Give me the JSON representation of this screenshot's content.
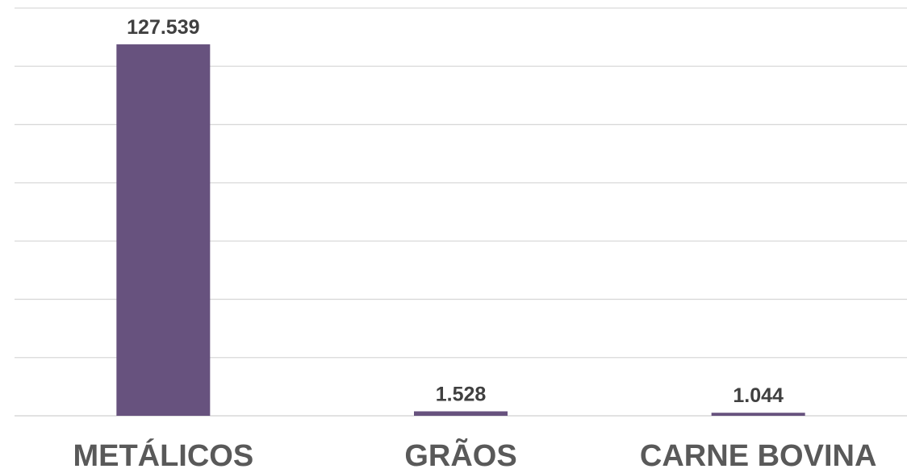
{
  "chart_data": {
    "type": "bar",
    "categories": [
      "METÁLICOS",
      "GRÃOS",
      "CARNE BOVINA"
    ],
    "values": [
      127539,
      1528,
      1044
    ],
    "data_labels": [
      "127.539",
      "1.528",
      "1.044"
    ],
    "title": "",
    "xlabel": "",
    "ylabel": "",
    "ylim": [
      0,
      140000
    ],
    "grid": true,
    "legend": "none",
    "bar_color": "#67527e",
    "grid_color": "#d9d9d9",
    "label_color": "#404040",
    "category_color": "#595959"
  }
}
